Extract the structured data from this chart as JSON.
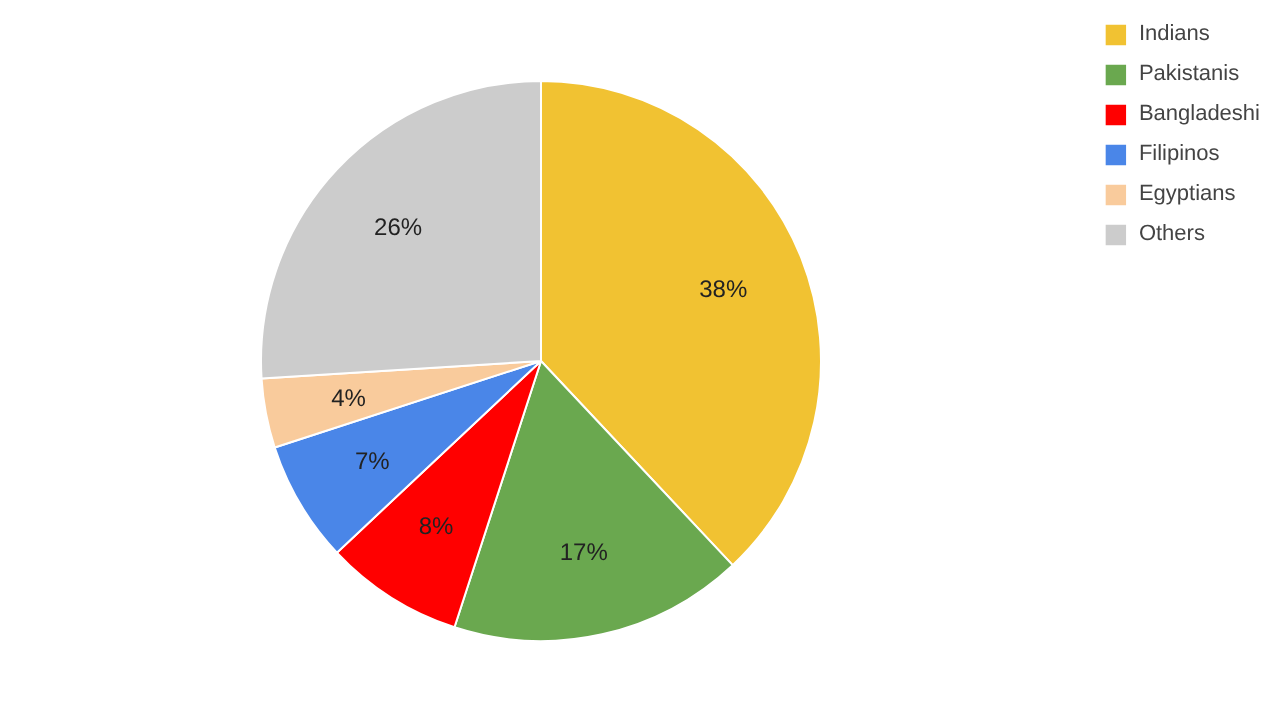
{
  "chart_data": {
    "type": "pie",
    "categories": [
      "Indians",
      "Pakistanis",
      "Bangladeshi",
      "Filipinos",
      "Egyptians",
      "Others"
    ],
    "values": [
      38,
      17,
      8,
      7,
      4,
      26
    ],
    "colors": [
      "#f1c232",
      "#6aa84f",
      "#ff0000",
      "#4a86e8",
      "#f9cb9c",
      "#cccccc"
    ],
    "value_labels": [
      "38%",
      "17%",
      "8%",
      "7%",
      "4%",
      "26%"
    ],
    "legend": "top right"
  }
}
